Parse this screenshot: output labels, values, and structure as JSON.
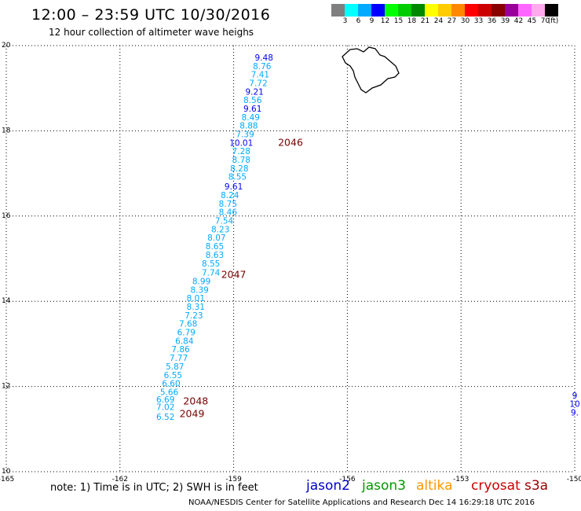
{
  "title": "12:00 – 23:59 UTC 10/30/2016",
  "subtitle": "12 hour collection of altimeter wave heighs",
  "colorbar": {
    "unit": "(ft)",
    "labels": [
      "3",
      "6",
      "9",
      "12",
      "15",
      "18",
      "21",
      "24",
      "27",
      "30",
      "33",
      "36",
      "39",
      "42",
      "45",
      "70"
    ],
    "colors": [
      "#7f7f7f",
      "#00ffff",
      "#00aaff",
      "#0000ff",
      "#00ff00",
      "#00cc00",
      "#008800",
      "#ffff00",
      "#ffcc00",
      "#ff8800",
      "#ff0000",
      "#cc0000",
      "#880000",
      "#990099",
      "#ff66ff",
      "#ffaaee",
      "#000000"
    ]
  },
  "axes": {
    "x_ticks": [
      "-165",
      "-162",
      "-159",
      "-156",
      "-153",
      "-150"
    ],
    "y_ticks": [
      "20",
      "18",
      "16",
      "14",
      "12",
      "10"
    ]
  },
  "swh_labels": [
    {
      "lon": -158.2,
      "lat": 19.65,
      "text": "9.48",
      "color": "#0000ff"
    },
    {
      "lon": -158.25,
      "lat": 19.45,
      "text": "8.76",
      "color": "#00aaff"
    },
    {
      "lon": -158.3,
      "lat": 19.25,
      "text": "7.41",
      "color": "#00aaff"
    },
    {
      "lon": -158.35,
      "lat": 19.05,
      "text": "7.72",
      "color": "#00aaff"
    },
    {
      "lon": -158.45,
      "lat": 18.85,
      "text": "9.21",
      "color": "#0000ff"
    },
    {
      "lon": -158.5,
      "lat": 18.65,
      "text": "8.56",
      "color": "#00aaff"
    },
    {
      "lon": -158.5,
      "lat": 18.45,
      "text": "9.61",
      "color": "#0000ff"
    },
    {
      "lon": -158.55,
      "lat": 18.25,
      "text": "8.49",
      "color": "#00aaff"
    },
    {
      "lon": -158.6,
      "lat": 18.05,
      "text": "8.88",
      "color": "#00aaff"
    },
    {
      "lon": -158.7,
      "lat": 17.85,
      "text": "7.39",
      "color": "#00aaff"
    },
    {
      "lon": -158.8,
      "lat": 17.65,
      "text": "10.01",
      "color": "#0000ff"
    },
    {
      "lon": -158.8,
      "lat": 17.45,
      "text": "7.28",
      "color": "#00aaff"
    },
    {
      "lon": -158.8,
      "lat": 17.25,
      "text": "8.78",
      "color": "#00aaff"
    },
    {
      "lon": -158.85,
      "lat": 17.05,
      "text": "8.28",
      "color": "#00aaff"
    },
    {
      "lon": -158.9,
      "lat": 16.85,
      "text": "8.55",
      "color": "#00aaff"
    },
    {
      "lon": -159.0,
      "lat": 16.62,
      "text": "9.61",
      "color": "#0000ff"
    },
    {
      "lon": -159.1,
      "lat": 16.42,
      "text": "8.24",
      "color": "#00aaff"
    },
    {
      "lon": -159.15,
      "lat": 16.22,
      "text": "8.75",
      "color": "#00aaff"
    },
    {
      "lon": -159.15,
      "lat": 16.02,
      "text": "8.46",
      "color": "#00aaff"
    },
    {
      "lon": -159.25,
      "lat": 15.82,
      "text": "7.54",
      "color": "#00aaff"
    },
    {
      "lon": -159.35,
      "lat": 15.62,
      "text": "8.23",
      "color": "#00aaff"
    },
    {
      "lon": -159.45,
      "lat": 15.42,
      "text": "8.07",
      "color": "#00aaff"
    },
    {
      "lon": -159.5,
      "lat": 15.22,
      "text": "8.65",
      "color": "#00aaff"
    },
    {
      "lon": -159.5,
      "lat": 15.02,
      "text": "8.63",
      "color": "#00aaff"
    },
    {
      "lon": -159.6,
      "lat": 14.82,
      "text": "8.55",
      "color": "#00aaff"
    },
    {
      "lon": -159.6,
      "lat": 14.6,
      "text": "7.74",
      "color": "#00aaff"
    },
    {
      "lon": -159.85,
      "lat": 14.4,
      "text": "8.99",
      "color": "#00aaff"
    },
    {
      "lon": -159.9,
      "lat": 14.2,
      "text": "8.39",
      "color": "#00aaff"
    },
    {
      "lon": -160.0,
      "lat": 14.0,
      "text": "8.01",
      "color": "#00aaff"
    },
    {
      "lon": -160.0,
      "lat": 13.8,
      "text": "8.31",
      "color": "#00aaff"
    },
    {
      "lon": -160.05,
      "lat": 13.6,
      "text": "7.23",
      "color": "#00aaff"
    },
    {
      "lon": -160.2,
      "lat": 13.4,
      "text": "7.68",
      "color": "#00aaff"
    },
    {
      "lon": -160.25,
      "lat": 13.2,
      "text": "6.79",
      "color": "#00aaff"
    },
    {
      "lon": -160.3,
      "lat": 13.0,
      "text": "6.84",
      "color": "#00aaff"
    },
    {
      "lon": -160.4,
      "lat": 12.8,
      "text": "7.86",
      "color": "#00aaff"
    },
    {
      "lon": -160.45,
      "lat": 12.6,
      "text": "7.77",
      "color": "#00aaff"
    },
    {
      "lon": -160.55,
      "lat": 12.4,
      "text": "5.87",
      "color": "#00aaff"
    },
    {
      "lon": -160.6,
      "lat": 12.2,
      "text": "6.55",
      "color": "#00aaff"
    },
    {
      "lon": -160.65,
      "lat": 12.0,
      "text": "6.60",
      "color": "#00aaff"
    },
    {
      "lon": -160.7,
      "lat": 11.8,
      "text": "5.66",
      "color": "#00aaff"
    },
    {
      "lon": -160.8,
      "lat": 11.62,
      "text": "6.69",
      "color": "#00aaff"
    },
    {
      "lon": -160.8,
      "lat": 11.45,
      "text": "7.02",
      "color": "#00aaff"
    },
    {
      "lon": -160.8,
      "lat": 11.22,
      "text": "6.52",
      "color": "#00aaff"
    },
    {
      "lon": -150.0,
      "lat": 11.72,
      "text": "9",
      "color": "#0000ff"
    },
    {
      "lon": -150.0,
      "lat": 11.52,
      "text": "10",
      "color": "#0000ff"
    },
    {
      "lon": -150.0,
      "lat": 11.32,
      "text": "9.",
      "color": "#0000ff"
    }
  ],
  "track_labels": [
    {
      "lon": -157.5,
      "lat": 17.65,
      "text": "2046",
      "color": "#770000"
    },
    {
      "lon": -159.0,
      "lat": 14.55,
      "text": "2047",
      "color": "#770000"
    },
    {
      "lon": -160.0,
      "lat": 11.58,
      "text": "2048",
      "color": "#770000"
    },
    {
      "lon": -160.1,
      "lat": 11.28,
      "text": "2049",
      "color": "#770000"
    }
  ],
  "note": "note: 1) Time is in UTC; 2) SWH is in feet",
  "satellites": [
    {
      "name": "jason2",
      "color": "#0000cc"
    },
    {
      "name": "jason3",
      "color": "#009900"
    },
    {
      "name": "altika",
      "color": "#ff9900"
    },
    {
      "name": "cryosat",
      "color": "#cc0000"
    },
    {
      "name": "s3a",
      "color": "#990000"
    }
  ],
  "credit": "NOAA/NESDIS Center for Satellite Applications and Research     Dec 14 16:29:18 UTC 2016"
}
